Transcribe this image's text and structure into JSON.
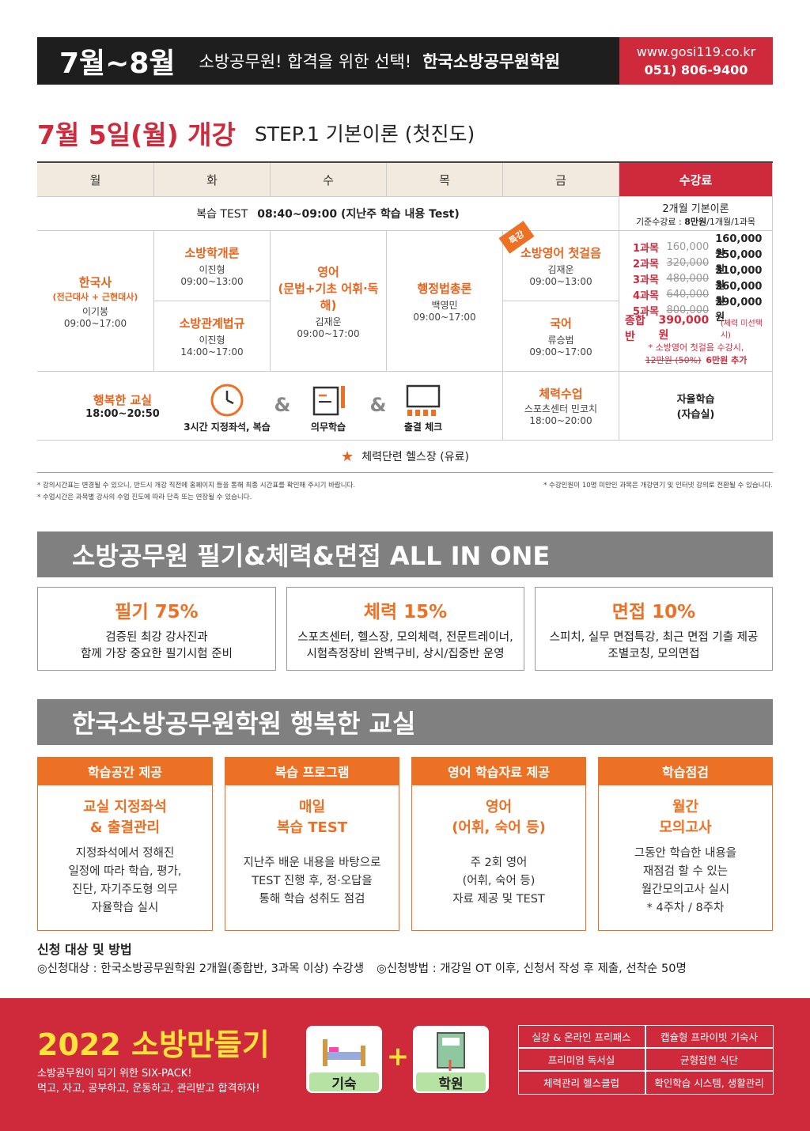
{
  "header": {
    "period": "7월~8월",
    "slogan": "소방공무원! 합격을 위한 선택!",
    "academy": "한국소방공무원학원",
    "url": "www.gosi119.co.kr",
    "phone": "051) 806-9400"
  },
  "schedule": {
    "start": "7월 5일(월) 개강",
    "step": "STEP.1 기본이론 (첫진도)",
    "days": [
      "월",
      "화",
      "수",
      "목",
      "금",
      "수강료"
    ],
    "review_label": "복습 TEST",
    "review_time": "08:40~09:00 (지난주 학습 내용 Test)",
    "fee_title": "2개월 기본이론",
    "fee_base_prefix": "기준수강료 : ",
    "fee_base_amount": "8만원",
    "fee_base_suffix": "/1개월/1과목",
    "classes": [
      {
        "name": "한국사",
        "sub": "(전근대사 + 근현대사)",
        "teacher": "이기봉",
        "time": "09:00~17:00"
      },
      {
        "name": "소방학개론",
        "teacher": "이진형",
        "time": "09:00~13:00"
      },
      {
        "name": "소방관계법규",
        "teacher": "이진형",
        "time": "14:00~17:00"
      },
      {
        "name": "영어",
        "sub": "(문법+기초 어휘·독해)",
        "teacher": "김재운",
        "time": "09:00~17:00"
      },
      {
        "name": "행정법총론",
        "teacher": "백영민",
        "time": "09:00~17:00"
      },
      {
        "name": "소방영어 첫걸음",
        "teacher": "김재운",
        "time": "09:00~13:00",
        "badge": "특강"
      },
      {
        "name": "국어",
        "teacher": "류승범",
        "time": "09:00~17:00"
      }
    ],
    "fees": [
      {
        "label": "1과목",
        "old": "160,000",
        "price": "160,000원"
      },
      {
        "label": "2과목",
        "old": "320,000",
        "price": "250,000원"
      },
      {
        "label": "3과목",
        "old": "480,000",
        "price": "310,000원"
      },
      {
        "label": "4과목",
        "old": "640,000",
        "price": "360,000원"
      },
      {
        "label": "5과목",
        "old": "800,000",
        "price": "390,000원"
      }
    ],
    "combined_label": "종합반",
    "combined_price": "390,000원",
    "combined_note": "(체력 미선택시)",
    "fee_note": "* 소방영어 첫걸음 수강시,",
    "fee_note_old": "12만원 (50%)",
    "fee_note_add": "6만원 추가",
    "evening": {
      "title": "행복한 교실",
      "time": "18:00~20:50",
      "items": [
        "3시간 지정좌석, 복습",
        "의무학습",
        "출결 체크"
      ],
      "amp": "&"
    },
    "fitness": {
      "title": "체력수업",
      "place": "스포츠센터 민코치",
      "time": "18:00~20:00"
    },
    "self_study": {
      "title": "자율학습",
      "sub": "(자습실)"
    },
    "gym": "체력단련 헬스장 (유료)",
    "notes_left": [
      "* 강의시간표는 변경될 수 있으니, 반드시 개강 직전에 홈페이지 등을 통해 최종 시간표를 확인해 주시기 바랍니다.",
      "* 수업시간은 과목별 강사의 수업 진도에 따라 단축 또는 연장될 수 있습니다."
    ],
    "note_right": "* 수강인원이 10명 미만인 과목은 개강연기 및 인터넷 강의로 전환될 수 있습니다."
  },
  "allinone": {
    "title": "소방공무원 필기&체력&면접 ALL IN ONE",
    "boxes": [
      {
        "title": "필기 75%",
        "lines": [
          "검증된 최강 강사진과",
          "함께 가장 중요한 필기시험 준비"
        ]
      },
      {
        "title": "체력 15%",
        "lines": [
          "스포츠센터, 헬스장, 모의체력, 전문트레이너,",
          "시험측정장비 완벽구비, 상시/집중반 운영"
        ]
      },
      {
        "title": "면접 10%",
        "lines": [
          "스피치, 실무 면접특강, 최근 면접 기출 제공",
          "조별코칭, 모의면접"
        ]
      }
    ]
  },
  "happy": {
    "title": "한국소방공무원학원 행복한 교실",
    "cards": [
      {
        "head": "학습공간 제공",
        "title": [
          "교실 지정좌석",
          "& 출결관리"
        ],
        "lines": [
          "지정좌석에서 정해진",
          "일정에 따라 학습, 평가,",
          "진단, 자기주도형 의무",
          "자율학습 실시"
        ]
      },
      {
        "head": "복습 프로그램",
        "title": [
          "매일",
          "복습 TEST"
        ],
        "lines": [
          "지난주 배운 내용을 바탕으로",
          "TEST 진행 후, 정·오답을",
          "통해 학습 성취도 점검"
        ]
      },
      {
        "head": "영어 학습자료 제공",
        "title": [
          "영어",
          "(어휘, 숙어 등)"
        ],
        "lines": [
          "주 2회 영어",
          "(어휘, 숙어 등)",
          "자료 제공 및 TEST"
        ]
      },
      {
        "head": "학습점검",
        "title": [
          "월간",
          "모의고사"
        ],
        "lines": [
          "그동안 학습한 내용을",
          "재점검 할 수 있는",
          "월간모의고사 실시",
          "* 4주차 / 8주차"
        ]
      }
    ]
  },
  "apply": {
    "title": "신청 대상 및 방법",
    "target": "◎신청대상 : 한국소방공무원학원 2개월(종합반, 3과목 이상) 수강생",
    "method": "◎신청방법 : 개강일 OT 이후, 신청서 작성 후 제출, 선착순 50명"
  },
  "footer": {
    "title": "2022 소방만들기",
    "lines": [
      "소방공무원이 되기 위한 SIX-PACK!",
      "먹고, 자고, 공부하고, 운동하고, 관리받고 합격하자!"
    ],
    "icons": [
      "기숙",
      "학원"
    ],
    "plus": "+",
    "features": [
      "실강 & 온라인 프리패스",
      "캡슐형 프라이빗 기숙사",
      "프리미엄 독서실",
      "균형잡힌 식단",
      "체력관리 헬스클럽",
      "확인학습 시스템, 생활관리"
    ]
  }
}
